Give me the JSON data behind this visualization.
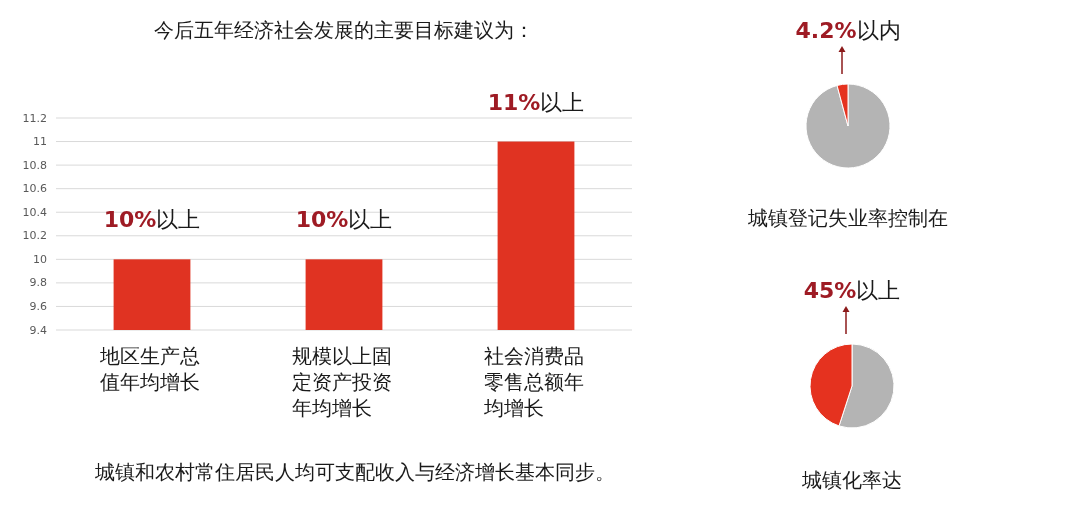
{
  "chart_data": [
    {
      "type": "bar",
      "title": "今后五年经济社会发展的主要目标建议为：",
      "categories": [
        "地区生产总值年均增长",
        "规模以上固定资产投资年均增长",
        "社会消费品零售总额年均增长"
      ],
      "values": [
        10,
        10,
        11
      ],
      "value_labels": [
        "10%以上",
        "10%以上",
        "11%以上"
      ],
      "color": "#e03322",
      "ylim": [
        9.4,
        11.2
      ],
      "yticks": [
        9.4,
        9.6,
        9.8,
        10,
        10.2,
        10.4,
        10.6,
        10.8,
        11,
        11.2
      ],
      "grid": "y",
      "annotations": [
        "城镇和农村常住居民人均可支配收入与经济增长基本同步。"
      ]
    },
    {
      "type": "pie",
      "title": "城镇登记失业率控制在",
      "categories": [
        null,
        null
      ],
      "values": [
        95.8,
        4.2
      ],
      "colors": [
        "#b4b4b4",
        "#e5321f"
      ],
      "value_labels": [
        null,
        "4.2%以内"
      ]
    },
    {
      "type": "pie",
      "title": "城镇化率达",
      "categories": [
        null,
        null
      ],
      "values": [
        55,
        45
      ],
      "colors": [
        "#b4b4b4",
        "#e5321f"
      ],
      "value_labels": [
        null,
        "45%以上"
      ]
    }
  ]
}
